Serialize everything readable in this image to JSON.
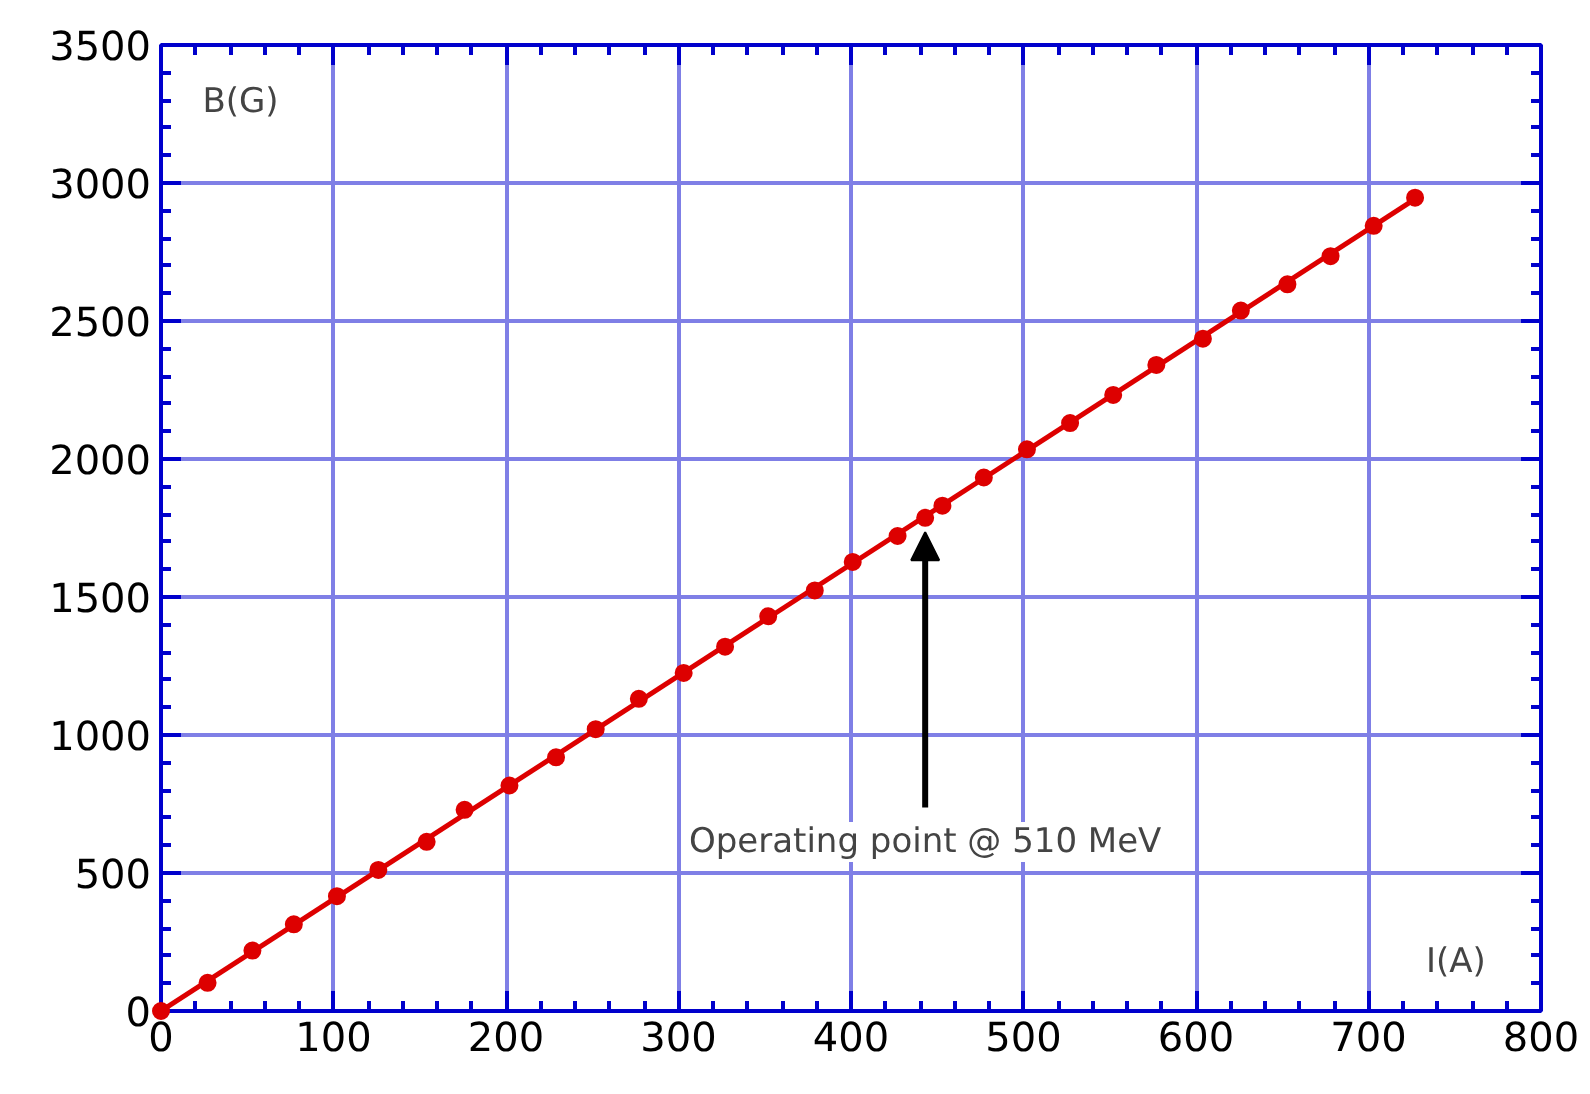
{
  "chart_data": {
    "type": "scatter",
    "xlabel": "I(A)",
    "ylabel": "B(G)",
    "xlim": [
      0,
      800
    ],
    "ylim": [
      0,
      3500
    ],
    "xticks": [
      0,
      100,
      200,
      300,
      400,
      500,
      600,
      700,
      800
    ],
    "yticks": [
      0,
      500,
      1000,
      1500,
      2000,
      2500,
      3000,
      3500
    ],
    "grid": true,
    "marker": "circle",
    "series": [
      {
        "color": "#dd0000",
        "x": [
          0,
          27,
          53,
          77,
          102,
          126,
          154,
          176,
          202,
          229,
          252,
          277,
          303,
          327,
          352,
          379,
          401,
          427,
          443,
          453,
          477,
          502,
          527,
          552,
          577,
          604,
          626,
          653,
          678,
          703,
          727
        ],
        "values": [
          0,
          102,
          219,
          314,
          416,
          511,
          613,
          729,
          817,
          919,
          1021,
          1131,
          1225,
          1320,
          1430,
          1524,
          1627,
          1721,
          1787,
          1831,
          1933,
          2035,
          2130,
          2232,
          2341,
          2436,
          2538,
          2633,
          2735,
          2845,
          2947
        ]
      },
      {
        "type": "line",
        "marker": "none",
        "color": "#dd0000",
        "x": [
          0,
          730
        ],
        "values": [
          0,
          2954
        ]
      }
    ],
    "annotations": [
      {
        "text": "Operating point @ 510 MeV",
        "x": 443,
        "y": 1787
      }
    ]
  }
}
